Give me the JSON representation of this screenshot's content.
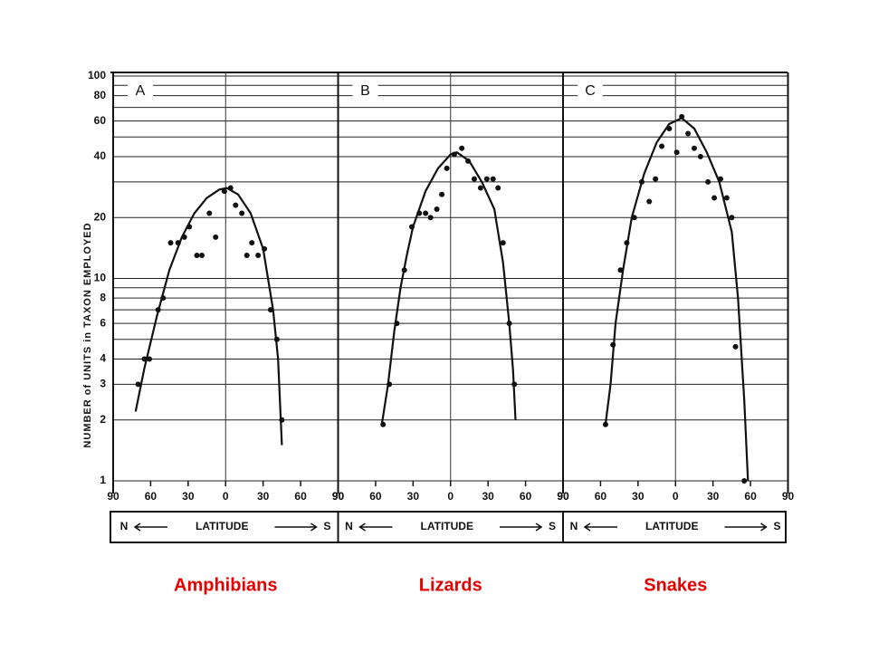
{
  "chart_data": [
    {
      "type": "scatter",
      "panel_label": "A",
      "caption": "Amphibians",
      "caption_color": "#e60000",
      "color": "#111111",
      "xlabel": "LATITUDE",
      "xlabel_left": "N",
      "xlabel_right": "S",
      "ylabel": "NUMBER of UNITS in TAXON EMPLOYED",
      "xlim": [
        -90,
        90
      ],
      "xticks": [
        {
          "value": -90,
          "label": "90"
        },
        {
          "value": -60,
          "label": "60"
        },
        {
          "value": -30,
          "label": "30"
        },
        0,
        30,
        60,
        90
      ],
      "ylim": [
        1,
        100
      ],
      "yscale": "log",
      "grid": true,
      "yticks": [
        1,
        2,
        3,
        4,
        6,
        8,
        10,
        20,
        40,
        60,
        80,
        100
      ],
      "yminor": [
        5,
        7,
        9,
        30,
        50,
        70,
        90
      ],
      "points": {
        "x": [
          -70,
          -65,
          -61,
          -54,
          -50,
          -44,
          -38,
          -33,
          -29,
          -23,
          -19,
          -13,
          -8,
          -1,
          4,
          8,
          13,
          17,
          21,
          26,
          31,
          36,
          41,
          45
        ],
        "values": [
          3,
          4,
          4,
          7,
          8,
          15,
          15,
          16,
          18,
          13,
          13,
          21,
          16,
          27,
          28,
          23,
          21,
          13,
          15,
          13,
          14,
          7,
          5,
          2
        ]
      },
      "curve": {
        "x": [
          -72,
          -65,
          -55,
          -45,
          -35,
          -25,
          -15,
          -5,
          1,
          10,
          20,
          30,
          38,
          42,
          45
        ],
        "values": [
          2.2,
          3.6,
          6.5,
          11,
          16,
          21,
          25,
          27.5,
          28,
          26,
          21,
          14,
          7,
          4,
          1.5
        ]
      }
    },
    {
      "type": "scatter",
      "panel_label": "B",
      "caption": "Lizards",
      "caption_color": "#e60000",
      "color": "#111111",
      "xlabel": "LATITUDE",
      "xlabel_left": "N",
      "xlabel_right": "S",
      "xlim": [
        -90,
        90
      ],
      "xticks": [
        {
          "value": -90,
          "label": "90"
        },
        {
          "value": -60,
          "label": "60"
        },
        {
          "value": -30,
          "label": "30"
        },
        0,
        30,
        60,
        90
      ],
      "ylim": [
        1,
        100
      ],
      "yscale": "log",
      "grid": true,
      "points": {
        "x": [
          -54,
          -49,
          -43,
          -37,
          -31,
          -25,
          -20,
          -16,
          -11,
          -7,
          -3,
          3,
          9,
          14,
          19,
          24,
          29,
          34,
          38,
          42,
          47,
          51
        ],
        "values": [
          1.9,
          3,
          6,
          11,
          18,
          21,
          21,
          20,
          22,
          26,
          35,
          41,
          44,
          38,
          31,
          28,
          31,
          31,
          28,
          15,
          6,
          3
        ]
      },
      "curve": {
        "x": [
          -55,
          -50,
          -45,
          -40,
          -35,
          -30,
          -20,
          -10,
          0,
          5,
          15,
          25,
          35,
          42,
          47,
          50,
          52
        ],
        "values": [
          1.9,
          3,
          5.5,
          9,
          13,
          18,
          27,
          35,
          41,
          42,
          38,
          30,
          22,
          12,
          6,
          3.5,
          2
        ]
      }
    },
    {
      "type": "scatter",
      "panel_label": "C",
      "caption": "Snakes",
      "caption_color": "#e60000",
      "color": "#111111",
      "xlabel": "LATITUDE",
      "xlabel_left": "N",
      "xlabel_right": "S",
      "xlim": [
        -90,
        90
      ],
      "xticks": [
        {
          "value": -90,
          "label": "90"
        },
        {
          "value": -60,
          "label": "60"
        },
        {
          "value": -30,
          "label": "30"
        },
        0,
        30,
        60,
        90
      ],
      "ylim": [
        1,
        100
      ],
      "yscale": "log",
      "grid": true,
      "points": {
        "x": [
          -56,
          -50,
          -44,
          -39,
          -33,
          -27,
          -21,
          -16,
          -11,
          -5,
          1,
          5,
          10,
          15,
          20,
          26,
          31,
          36,
          41,
          45,
          48,
          55
        ],
        "values": [
          1.9,
          4.7,
          11,
          15,
          20,
          30,
          24,
          31,
          45,
          55,
          42,
          63,
          52,
          44,
          40,
          30,
          25,
          31,
          25,
          20,
          4.6,
          1
        ]
      },
      "curve": {
        "x": [
          -56,
          -52,
          -48,
          -42,
          -35,
          -25,
          -15,
          -5,
          5,
          15,
          25,
          35,
          45,
          50,
          55,
          58
        ],
        "values": [
          1.9,
          3,
          6,
          11,
          20,
          33,
          47,
          58,
          62,
          55,
          42,
          30,
          17,
          8,
          2.5,
          1
        ]
      }
    }
  ]
}
